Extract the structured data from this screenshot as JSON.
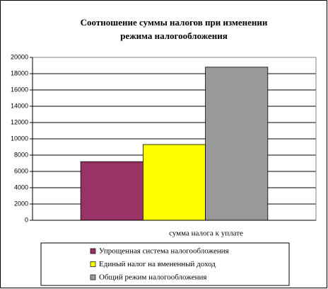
{
  "chart_data": {
    "type": "bar",
    "title": [
      "Соотношение суммы налогов при изменении",
      "режима налогообложения"
    ],
    "categories": [
      "сумма налога к уплате"
    ],
    "series": [
      {
        "name": "Упрощенная система налогообложения",
        "color": "#993366",
        "values": [
          7200
        ]
      },
      {
        "name": "Единый налог на вмененный доход",
        "color": "#ffff00",
        "values": [
          9300
        ]
      },
      {
        "name": "Общий режим налогообложения",
        "color": "#999999",
        "values": [
          18800
        ]
      }
    ],
    "ylim": [
      0,
      20000
    ],
    "yticks": [
      0,
      2000,
      4000,
      6000,
      8000,
      10000,
      12000,
      14000,
      16000,
      18000,
      20000
    ],
    "grid": true,
    "legend": "bottom"
  }
}
